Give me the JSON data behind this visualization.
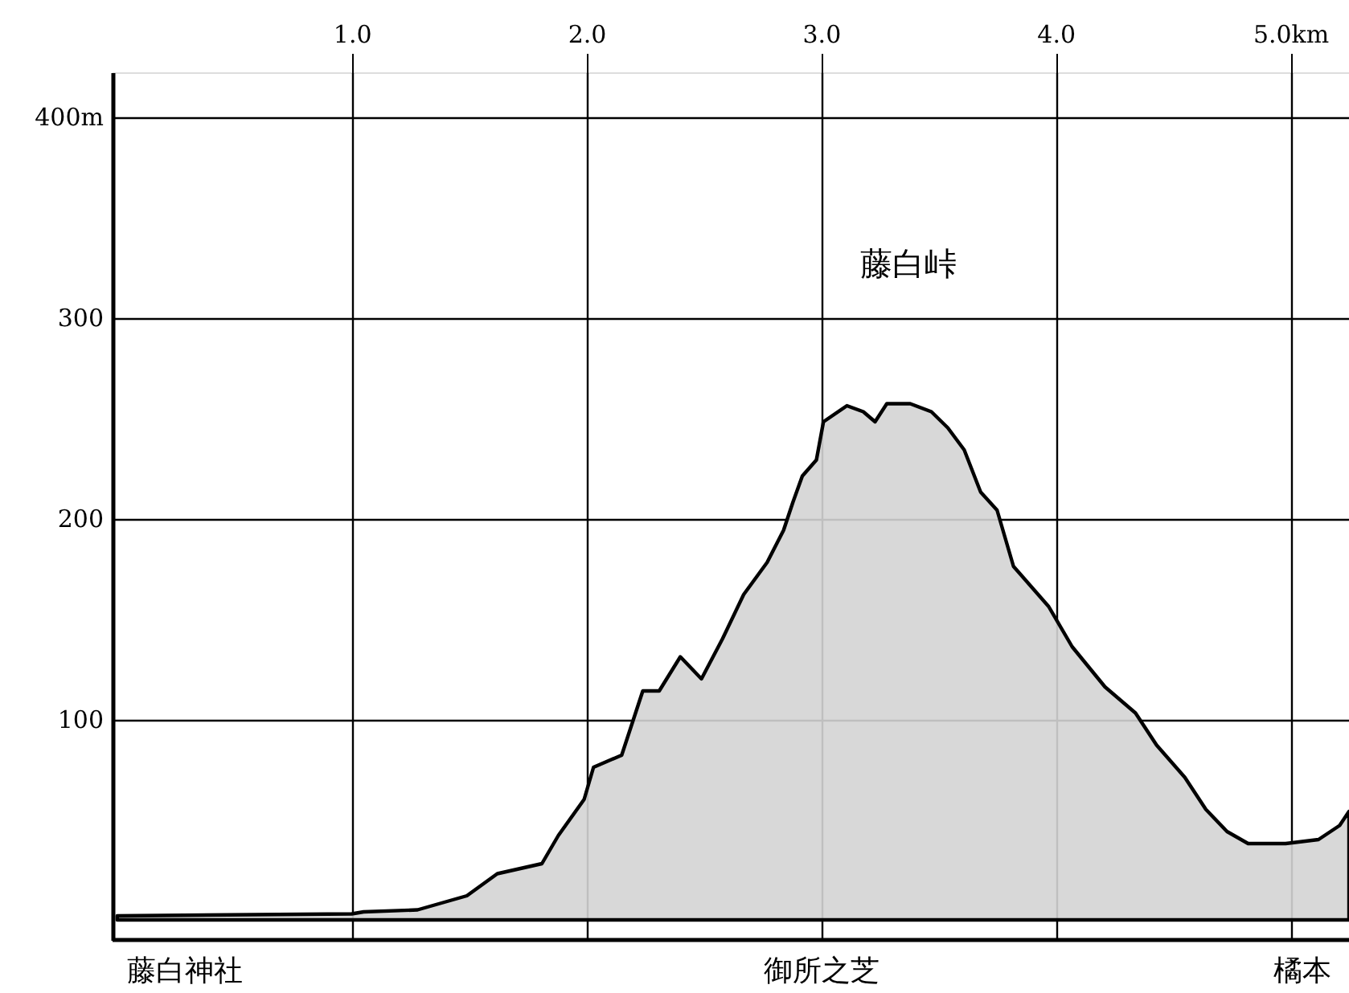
{
  "chart_data": {
    "type": "area",
    "x": [
      0,
      1.0,
      1.05,
      1.28,
      1.49,
      1.62,
      1.81,
      1.88,
      1.99,
      2.03,
      2.15,
      2.24,
      2.31,
      2.4,
      2.49,
      2.58,
      2.67,
      2.77,
      2.84,
      2.88,
      2.92,
      2.98,
      3.01,
      3.11,
      3.18,
      3.23,
      3.28,
      3.38,
      3.47,
      3.54,
      3.61,
      3.68,
      3.75,
      3.82,
      3.97,
      4.07,
      4.21,
      4.34,
      4.43,
      4.55,
      4.64,
      4.73,
      4.82,
      4.98,
      5.12,
      5.21,
      5.25
    ],
    "series": [
      {
        "color": "#d4d4d4",
        "values": [
          2,
          3,
          4,
          5,
          12,
          23,
          28,
          42,
          60,
          76,
          82,
          114,
          114,
          131,
          120,
          140,
          162,
          178,
          194,
          208,
          221,
          229,
          248,
          256,
          253,
          248,
          257,
          257,
          253,
          245,
          234,
          213,
          204,
          176,
          156,
          136,
          116,
          103,
          87,
          71,
          55,
          44,
          38,
          38,
          40,
          47,
          54
        ]
      }
    ],
    "xlim": [
      -0.02,
      5.25
    ],
    "ylim": [
      -10,
      422
    ],
    "xticks": [
      {
        "value": 1,
        "label": "1.0"
      },
      {
        "value": 2,
        "label": "2.0"
      },
      {
        "value": 3,
        "label": "3.0"
      },
      {
        "value": 4,
        "label": "4.0"
      },
      {
        "value": 5,
        "label": "5.0km"
      }
    ],
    "yticks": [
      100,
      200,
      300,
      {
        "value": 400,
        "label": "400m"
      }
    ],
    "grid": true,
    "annotations": [
      "藤白峠",
      "藤白神社",
      "御所之芝",
      "橘本"
    ]
  }
}
